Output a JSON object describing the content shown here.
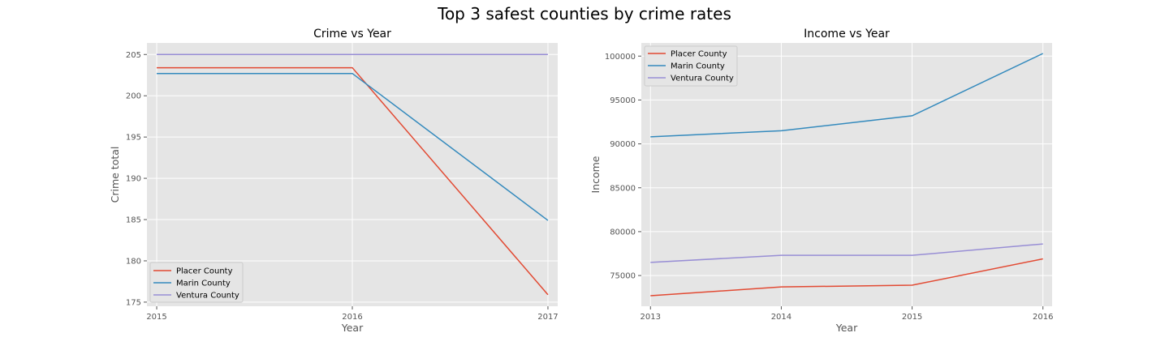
{
  "figure": {
    "title": "Top 3 safest counties by crime rates"
  },
  "chart_data": [
    {
      "type": "line",
      "title": "Crime vs Year",
      "xlabel": "Year",
      "ylabel": "Crime total",
      "x": [
        2015,
        2016,
        2017
      ],
      "xticks": [
        "2015",
        "2016",
        "2017"
      ],
      "xlim": [
        2014.95,
        2017.05
      ],
      "yticks": [
        "175",
        "180",
        "185",
        "190",
        "195",
        "200",
        "205"
      ],
      "ylim": [
        174.5,
        206.4
      ],
      "grid": true,
      "legend_loc": "lower left",
      "series": [
        {
          "name": "Placer County",
          "color": "#e24a33",
          "values": [
            203.4,
            203.4,
            175.9
          ]
        },
        {
          "name": "Marin County",
          "color": "#348abd",
          "values": [
            202.7,
            202.7,
            184.9
          ]
        },
        {
          "name": "Ventura County",
          "color": "#988ed5",
          "values": [
            205.0,
            205.0,
            205.0
          ]
        }
      ]
    },
    {
      "type": "line",
      "title": "Income vs Year",
      "xlabel": "Year",
      "ylabel": "Income",
      "x": [
        2013,
        2014,
        2015,
        2016
      ],
      "xticks": [
        "2013",
        "2014",
        "2015",
        "2016"
      ],
      "xlim": [
        2012.93,
        2016.07
      ],
      "yticks": [
        "75000",
        "80000",
        "85000",
        "90000",
        "95000",
        "100000"
      ],
      "ylim": [
        71500,
        101500
      ],
      "grid": true,
      "legend_loc": "upper left",
      "series": [
        {
          "name": "Placer County",
          "color": "#e24a33",
          "values": [
            72700,
            73700,
            73900,
            76900
          ]
        },
        {
          "name": "Marin County",
          "color": "#348abd",
          "values": [
            90800,
            91500,
            93200,
            100300
          ]
        },
        {
          "name": "Ventura County",
          "color": "#988ed5",
          "values": [
            76500,
            77300,
            77300,
            78600
          ]
        }
      ]
    }
  ]
}
